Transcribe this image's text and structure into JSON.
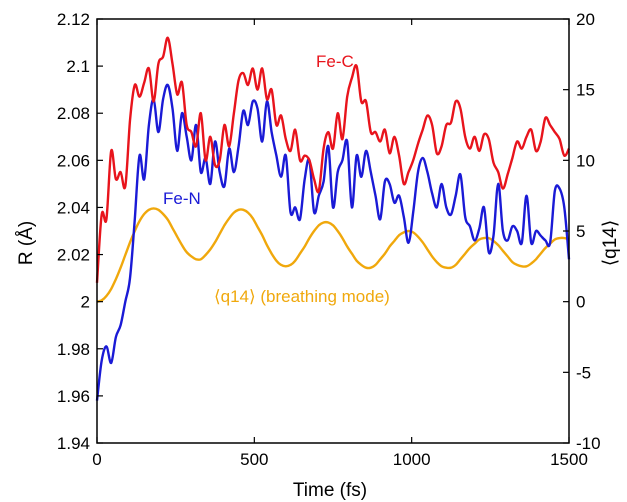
{
  "chart_data": {
    "type": "line",
    "xlabel": "Time (fs)",
    "ylabel_left": "R (Å)",
    "ylabel_right": "⟨q14⟩",
    "xlim": [
      0,
      1500
    ],
    "ylim_left": [
      1.94,
      2.12
    ],
    "ylim_right": [
      -10,
      20
    ],
    "x_ticks": [
      "0",
      "500",
      "1000",
      "1500"
    ],
    "y_ticks_left": [
      "1.94",
      "1.96",
      "1.98",
      "2",
      "2.02",
      "2.04",
      "2.06",
      "2.08",
      "2.1",
      "2.12"
    ],
    "y_ticks_right": [
      "-10",
      "-5",
      "0",
      "5",
      "10",
      "15",
      "20"
    ],
    "grid": false,
    "annotations": {
      "fe_c": "Fe-C",
      "fe_n": "Fe-N",
      "q14": "⟨q14⟩ (breathing mode)"
    },
    "colors": {
      "fe_c": "#e8141c",
      "fe_n": "#1a1ad6",
      "q14": "#f0a80c"
    },
    "series": [
      {
        "name": "Fe-C",
        "axis": "left",
        "x": [
          0,
          15,
          30,
          45,
          60,
          75,
          90,
          105,
          120,
          135,
          150,
          165,
          180,
          195,
          210,
          225,
          240,
          255,
          270,
          285,
          300,
          315,
          330,
          345,
          360,
          375,
          390,
          405,
          420,
          435,
          450,
          465,
          480,
          495,
          510,
          525,
          540,
          555,
          570,
          585,
          600,
          615,
          630,
          645,
          660,
          675,
          690,
          705,
          720,
          735,
          750,
          765,
          780,
          795,
          810,
          825,
          840,
          855,
          870,
          885,
          900,
          915,
          930,
          945,
          960,
          975,
          990,
          1005,
          1020,
          1035,
          1050,
          1065,
          1080,
          1095,
          1110,
          1125,
          1140,
          1155,
          1170,
          1185,
          1200,
          1215,
          1230,
          1245,
          1260,
          1275,
          1290,
          1305,
          1320,
          1335,
          1350,
          1365,
          1380,
          1395,
          1410,
          1425,
          1440,
          1455,
          1470,
          1485,
          1500
        ],
        "values": [
          2.008,
          2.037,
          2.035,
          2.064,
          2.052,
          2.055,
          2.049,
          2.077,
          2.092,
          2.087,
          2.093,
          2.099,
          2.085,
          2.101,
          2.104,
          2.112,
          2.101,
          2.088,
          2.093,
          2.075,
          2.072,
          2.066,
          2.08,
          2.06,
          2.07,
          2.058,
          2.06,
          2.075,
          2.066,
          2.08,
          2.094,
          2.097,
          2.092,
          2.099,
          2.09,
          2.099,
          2.086,
          2.09,
          2.075,
          2.079,
          2.069,
          2.064,
          2.073,
          2.06,
          2.062,
          2.06,
          2.052,
          2.047,
          2.065,
          2.072,
          2.065,
          2.08,
          2.069,
          2.087,
          2.095,
          2.1,
          2.085,
          2.085,
          2.072,
          2.072,
          2.068,
          2.073,
          2.063,
          2.07,
          2.062,
          2.05,
          2.055,
          2.06,
          2.067,
          2.073,
          2.079,
          2.075,
          2.063,
          2.066,
          2.075,
          2.076,
          2.085,
          2.082,
          2.07,
          2.065,
          2.07,
          2.064,
          2.071,
          2.069,
          2.059,
          2.055,
          2.048,
          2.054,
          2.061,
          2.068,
          2.065,
          2.07,
          2.073,
          2.064,
          2.068,
          2.078,
          2.075,
          2.072,
          2.069,
          2.062,
          2.065
        ]
      },
      {
        "name": "Fe-N",
        "axis": "left",
        "x": [
          0,
          15,
          30,
          45,
          60,
          75,
          90,
          105,
          120,
          135,
          150,
          165,
          180,
          195,
          210,
          225,
          240,
          255,
          270,
          285,
          300,
          315,
          330,
          345,
          360,
          375,
          390,
          405,
          420,
          435,
          450,
          465,
          480,
          495,
          510,
          525,
          540,
          555,
          570,
          585,
          600,
          615,
          630,
          645,
          660,
          675,
          690,
          705,
          720,
          735,
          750,
          765,
          780,
          795,
          810,
          825,
          840,
          855,
          870,
          885,
          900,
          915,
          930,
          945,
          960,
          975,
          990,
          1005,
          1020,
          1035,
          1050,
          1065,
          1080,
          1095,
          1110,
          1125,
          1140,
          1155,
          1170,
          1185,
          1200,
          1215,
          1230,
          1245,
          1260,
          1275,
          1290,
          1305,
          1320,
          1335,
          1350,
          1365,
          1380,
          1395,
          1410,
          1425,
          1440,
          1455,
          1470,
          1485,
          1500
        ],
        "values": [
          1.958,
          1.975,
          1.981,
          1.974,
          1.985,
          1.99,
          2.0,
          2.01,
          2.035,
          2.062,
          2.052,
          2.075,
          2.086,
          2.072,
          2.086,
          2.092,
          2.082,
          2.064,
          2.08,
          2.07,
          2.06,
          2.075,
          2.055,
          2.061,
          2.05,
          2.068,
          2.055,
          2.049,
          2.065,
          2.055,
          2.066,
          2.081,
          2.075,
          2.085,
          2.082,
          2.068,
          2.085,
          2.072,
          2.062,
          2.053,
          2.062,
          2.038,
          2.04,
          2.035,
          2.052,
          2.06,
          2.038,
          2.045,
          2.051,
          2.066,
          2.04,
          2.055,
          2.06,
          2.068,
          2.04,
          2.062,
          2.053,
          2.064,
          2.055,
          2.045,
          2.035,
          2.051,
          2.05,
          2.042,
          2.045,
          2.036,
          2.025,
          2.038,
          2.055,
          2.061,
          2.055,
          2.046,
          2.04,
          2.05,
          2.04,
          2.037,
          2.045,
          2.054,
          2.036,
          2.032,
          2.026,
          2.031,
          2.04,
          2.021,
          2.028,
          2.05,
          2.03,
          2.026,
          2.032,
          2.03,
          2.025,
          2.045,
          2.025,
          2.03,
          2.028,
          2.026,
          2.025,
          2.047,
          2.048,
          2.04,
          2.018
        ]
      },
      {
        "name": "⟨q14⟩ (breathing mode)",
        "axis": "right",
        "x": [
          0,
          15,
          30,
          45,
          60,
          75,
          90,
          105,
          120,
          135,
          150,
          165,
          180,
          195,
          210,
          225,
          240,
          255,
          270,
          285,
          300,
          315,
          330,
          345,
          360,
          375,
          390,
          405,
          420,
          435,
          450,
          465,
          480,
          495,
          510,
          525,
          540,
          555,
          570,
          585,
          600,
          615,
          630,
          645,
          660,
          675,
          690,
          705,
          720,
          735,
          750,
          765,
          780,
          795,
          810,
          825,
          840,
          855,
          870,
          885,
          900,
          915,
          930,
          945,
          960,
          975,
          990,
          1005,
          1020,
          1035,
          1050,
          1065,
          1080,
          1095,
          1110,
          1125,
          1140,
          1155,
          1170,
          1185,
          1200,
          1215,
          1230,
          1245,
          1260,
          1275,
          1290,
          1305,
          1320,
          1335,
          1350,
          1365,
          1380,
          1395,
          1410,
          1425,
          1440,
          1455,
          1470,
          1485,
          1500
        ],
        "values": [
          0.0,
          0.1,
          0.4,
          0.9,
          1.6,
          2.4,
          3.3,
          4.2,
          5.0,
          5.7,
          6.2,
          6.5,
          6.6,
          6.5,
          6.2,
          5.8,
          5.2,
          4.6,
          4.0,
          3.5,
          3.2,
          3.0,
          3.0,
          3.3,
          3.7,
          4.2,
          4.8,
          5.4,
          5.9,
          6.3,
          6.5,
          6.5,
          6.3,
          5.9,
          5.3,
          4.7,
          4.0,
          3.4,
          2.9,
          2.6,
          2.5,
          2.6,
          2.9,
          3.4,
          3.9,
          4.5,
          5.0,
          5.4,
          5.6,
          5.6,
          5.4,
          5.0,
          4.5,
          3.9,
          3.4,
          2.9,
          2.6,
          2.4,
          2.4,
          2.6,
          3.0,
          3.4,
          3.9,
          4.3,
          4.7,
          4.9,
          5.0,
          4.9,
          4.6,
          4.2,
          3.7,
          3.2,
          2.8,
          2.5,
          2.4,
          2.4,
          2.6,
          3.0,
          3.4,
          3.8,
          4.1,
          4.4,
          4.5,
          4.5,
          4.3,
          4.0,
          3.6,
          3.2,
          2.8,
          2.6,
          2.5,
          2.5,
          2.7,
          3.0,
          3.4,
          3.8,
          4.1,
          4.4,
          4.5,
          4.5,
          4.4
        ]
      }
    ]
  }
}
